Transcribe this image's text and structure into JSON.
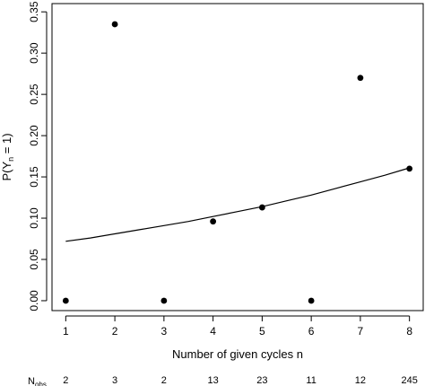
{
  "chart_data": {
    "type": "scatter",
    "xlabel": "Number of given cycles n",
    "ylabel_main": "P(Y",
    "ylabel_sub": "n",
    "ylabel_rest": " = 1)",
    "x_ticks": [
      1,
      2,
      3,
      4,
      5,
      6,
      7,
      8
    ],
    "y_ticks": [
      "0.00",
      "0.05",
      "0.10",
      "0.15",
      "0.20",
      "0.25",
      "0.30",
      "0.35"
    ],
    "y_tick_values": [
      0,
      0.05,
      0.1,
      0.15,
      0.2,
      0.25,
      0.3,
      0.35
    ],
    "xlim": [
      0.72,
      8.28
    ],
    "ylim": [
      -0.012,
      0.36
    ],
    "points": [
      {
        "x": 1,
        "y": 0.0
      },
      {
        "x": 2,
        "y": 0.335
      },
      {
        "x": 3,
        "y": 0.0
      },
      {
        "x": 4,
        "y": 0.096
      },
      {
        "x": 5,
        "y": 0.113
      },
      {
        "x": 6,
        "y": 0.0
      },
      {
        "x": 7,
        "y": 0.27
      },
      {
        "x": 8,
        "y": 0.16
      }
    ],
    "fit_curve": {
      "x": [
        1,
        1.5,
        2,
        2.5,
        3,
        3.5,
        4,
        4.5,
        5,
        5.5,
        6,
        6.5,
        7,
        7.5,
        8
      ],
      "y": [
        0.072,
        0.076,
        0.081,
        0.086,
        0.091,
        0.096,
        0.102,
        0.108,
        0.114,
        0.121,
        0.128,
        0.136,
        0.144,
        0.152,
        0.161
      ]
    },
    "nobs": {
      "label": "N",
      "label_sub": "obs",
      "values": [
        "2",
        "3",
        "2",
        "13",
        "23",
        "11",
        "12",
        "245"
      ]
    },
    "grid": false,
    "legend": "none"
  }
}
